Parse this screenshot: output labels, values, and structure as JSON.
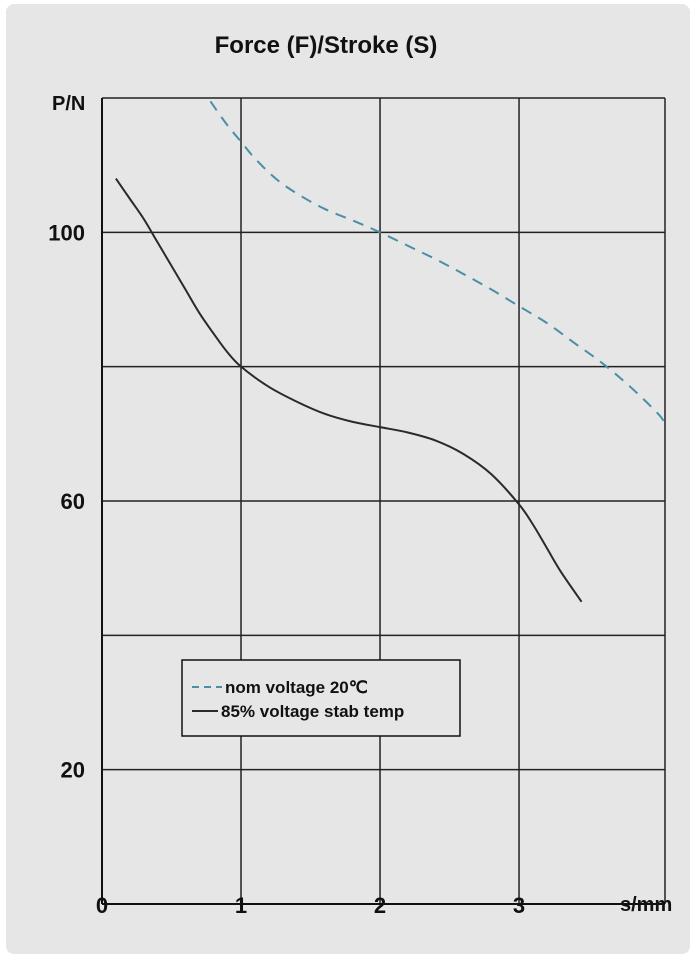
{
  "chart_data": {
    "type": "line",
    "title": "Force (F)/Stroke (S)",
    "xlabel": "s/mm",
    "ylabel": "P/N",
    "xlim": [
      0,
      4.05
    ],
    "ylim": [
      0,
      120
    ],
    "x_ticks": [
      {
        "value": 0,
        "label": "0"
      },
      {
        "value": 1,
        "label": "1"
      },
      {
        "value": 2,
        "label": "2"
      },
      {
        "value": 3,
        "label": "3"
      }
    ],
    "y_ticks": [
      {
        "value": 20,
        "label": "20"
      },
      {
        "value": 60,
        "label": "60"
      },
      {
        "value": 100,
        "label": "100"
      }
    ],
    "x_grid": [
      1,
      2,
      3,
      4.05
    ],
    "y_grid": [
      20,
      40,
      60,
      80,
      100,
      120
    ],
    "grid": true,
    "legend_position": "center-left",
    "series": [
      {
        "name": "nom voltage 20℃",
        "style": "dashed",
        "color": "#4a8fa6",
        "x": [
          0.78,
          0.9,
          1.0,
          1.1,
          1.25,
          1.4,
          1.6,
          1.8,
          2.0,
          2.2,
          2.4,
          2.6,
          2.8,
          3.0,
          3.2,
          3.4,
          3.6,
          3.8,
          4.0,
          4.05
        ],
        "y": [
          119.5,
          116,
          113.5,
          111,
          108,
          105.8,
          103.5,
          101.8,
          100,
          98,
          96,
          93.8,
          91.5,
          89,
          86.5,
          83.5,
          80.5,
          77,
          73,
          71.5
        ]
      },
      {
        "name": "85% voltage stab temp",
        "style": "solid",
        "color": "#2a2a2a",
        "x": [
          0.1,
          0.2,
          0.3,
          0.4,
          0.5,
          0.6,
          0.7,
          0.8,
          0.9,
          1.0,
          1.2,
          1.4,
          1.6,
          1.8,
          2.0,
          2.2,
          2.4,
          2.6,
          2.8,
          3.0,
          3.1,
          3.2,
          3.3,
          3.45
        ],
        "y": [
          108,
          105,
          102,
          98.5,
          95,
          91.5,
          88,
          85,
          82.2,
          80,
          77,
          74.8,
          73,
          71.8,
          71,
          70.2,
          69,
          67,
          64,
          59.5,
          56.5,
          53,
          49.5,
          45
        ]
      }
    ]
  }
}
